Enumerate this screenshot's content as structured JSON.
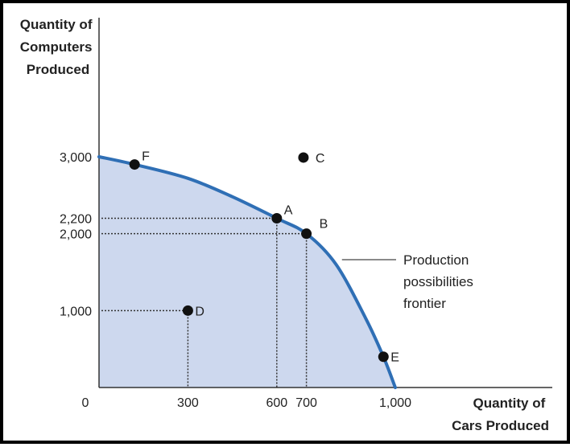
{
  "chart_data": {
    "type": "area",
    "ylabel_lines": [
      "Quantity of",
      "Computers",
      "Produced"
    ],
    "xlabel_lines": [
      "Quantity of",
      "Cars Produced"
    ],
    "origin_label": "0",
    "xlim": [
      0,
      1500
    ],
    "ylim": [
      0,
      4000
    ],
    "x_ticks": [
      {
        "value": 300,
        "label": "300"
      },
      {
        "value": 600,
        "label": "600"
      },
      {
        "value": 700,
        "label": "700"
      },
      {
        "value": 1000,
        "label": "1,000"
      }
    ],
    "y_ticks": [
      {
        "value": 1000,
        "label": "1,000"
      },
      {
        "value": 2000,
        "label": "2,000"
      },
      {
        "value": 2200,
        "label": "2,200"
      },
      {
        "value": 3000,
        "label": "3,000"
      }
    ],
    "frontier": {
      "x": [
        0,
        120,
        300,
        450,
        600,
        700,
        800,
        900,
        960,
        1000
      ],
      "y": [
        3000,
        2900,
        2720,
        2480,
        2200,
        2000,
        1600,
        900,
        400,
        0
      ]
    },
    "points": [
      {
        "label": "F",
        "x": 120,
        "y": 2900
      },
      {
        "label": "C",
        "x": 690,
        "y": 2990
      },
      {
        "label": "A",
        "x": 600,
        "y": 2200
      },
      {
        "label": "B",
        "x": 700,
        "y": 2000
      },
      {
        "label": "D",
        "x": 300,
        "y": 1000
      },
      {
        "label": "E",
        "x": 960,
        "y": 400
      }
    ],
    "guides": [
      {
        "x": 600,
        "y": 2200
      },
      {
        "x": 700,
        "y": 2000
      },
      {
        "x": 300,
        "y": 1000
      }
    ],
    "annotation_lines": [
      "Production",
      "possibilities",
      "frontier"
    ],
    "colors": {
      "frontier": "#2f6fb5",
      "fill": "#cdd8ee",
      "point": "#111111",
      "axis": "#333333"
    }
  }
}
